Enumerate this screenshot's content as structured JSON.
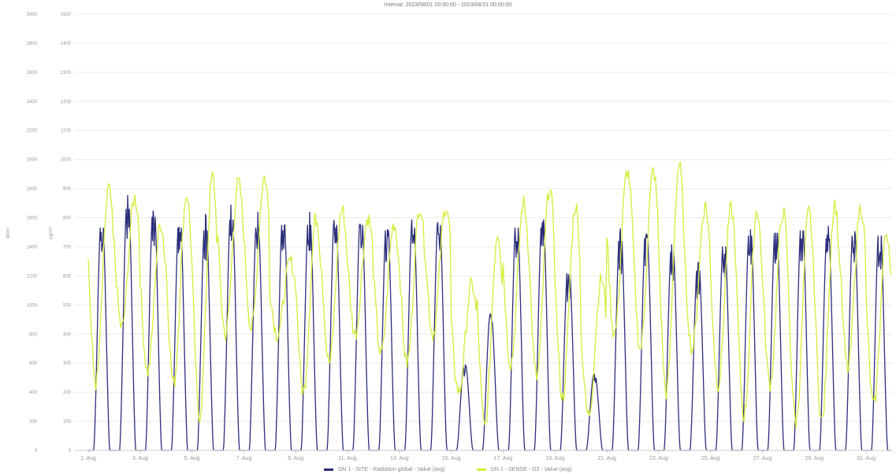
{
  "chart_data": {
    "type": "line",
    "title": "Interval: 2023/08/01 00:00:00 - 2023/08/31 00:00:00",
    "left_axis": {
      "label": "W/m²",
      "ticks": [
        0,
        200,
        400,
        600,
        800,
        1000,
        1200,
        1400,
        1600,
        1800,
        2000,
        2200,
        2400,
        2600,
        2800,
        3000
      ]
    },
    "right_axis": {
      "label": "µg/m³",
      "ticks": [
        0,
        100,
        200,
        300,
        400,
        500,
        600,
        700,
        800,
        900,
        1000,
        1100,
        1200,
        1300,
        1400,
        1500
      ]
    },
    "x_ticks": [
      "1. Aug",
      "3. Aug",
      "5. Aug",
      "7. Aug",
      "9. Aug",
      "11. Aug",
      "13. Aug",
      "15. Aug",
      "17. Aug",
      "19. Aug",
      "21. Aug",
      "23. Aug",
      "25. Aug",
      "27. Aug",
      "29. Aug",
      "31. Aug"
    ],
    "days": 31,
    "ylim": [
      0,
      1500
    ],
    "grid": true,
    "legend_placement": "bottom",
    "series": [
      {
        "name": "DN 1 - SITE - Radiation global - Value (avg)",
        "color": "#2b2f7a",
        "axis": "left",
        "daily_peak": [
          830,
          900,
          870,
          830,
          820,
          860,
          830,
          840,
          840,
          840,
          840,
          820,
          830,
          840,
          310,
          480,
          830,
          830,
          660,
          270,
          780,
          790,
          740,
          670,
          760,
          800,
          810,
          820,
          790,
          800,
          800
        ]
      },
      {
        "name": "DN 1 - SENSE - O3 - Value (avg)",
        "color": "#d6ec3a",
        "axis": "right",
        "daily_peak": [
          900,
          870,
          780,
          880,
          940,
          920,
          940,
          650,
          800,
          830,
          800,
          780,
          840,
          840,
          570,
          750,
          850,
          900,
          840,
          590,
          960,
          960,
          980,
          840,
          830,
          830,
          820,
          820,
          850,
          840,
          750
        ],
        "daily_min": [
          230,
          420,
          270,
          230,
          120,
          400,
          420,
          400,
          200,
          300,
          400,
          330,
          300,
          400,
          200,
          80,
          300,
          250,
          180,
          120,
          400,
          350,
          200,
          350,
          230,
          120,
          230,
          100,
          100,
          280,
          150
        ]
      }
    ]
  }
}
